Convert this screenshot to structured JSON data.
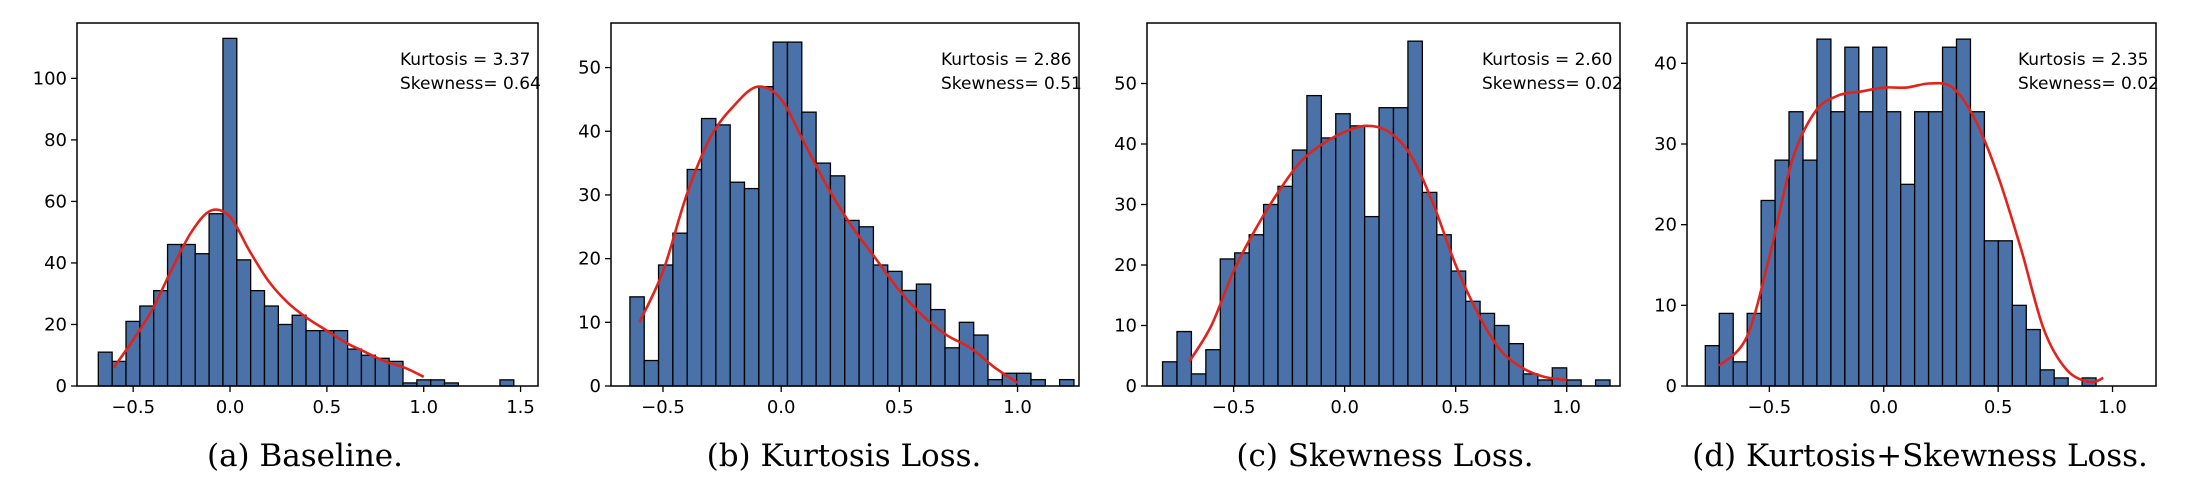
{
  "colors": {
    "bar_fill": "#4a72a8",
    "bar_edge": "#000000",
    "curve": "#e0241c",
    "axis": "#000000"
  },
  "chart_data": [
    {
      "type": "bar",
      "caption": "(a)  Baseline.",
      "stats": {
        "kurtosis_label": "Kurtosis   = 3.37",
        "skewness_label": "Skewness= 0.64"
      },
      "xlim": [
        -0.79,
        1.59
      ],
      "ylim": [
        0,
        118
      ],
      "xticks": [
        -0.5,
        0.0,
        0.5,
        1.0,
        1.5
      ],
      "xtick_labels": [
        "−0.5",
        "0.0",
        "0.5",
        "1.0",
        "1.5"
      ],
      "yticks": [
        0,
        20,
        40,
        60,
        80,
        100
      ],
      "ytick_labels": [
        "0",
        "20",
        "40",
        "60",
        "80",
        "100"
      ],
      "bins": {
        "start": -0.68,
        "width": 0.0715,
        "counts": [
          11,
          8,
          21,
          26,
          31,
          46,
          46,
          43,
          56,
          113,
          41,
          31,
          26,
          20,
          23,
          18,
          18,
          18,
          12,
          10,
          9,
          8,
          1,
          2,
          2,
          1,
          0,
          0,
          0,
          2
        ]
      },
      "density_curve": {
        "x": [
          -0.6,
          -0.5,
          -0.4,
          -0.3,
          -0.2,
          -0.1,
          0.0,
          0.1,
          0.2,
          0.3,
          0.4,
          0.5,
          0.6,
          0.7,
          0.8,
          0.9,
          1.0
        ],
        "y": [
          6,
          15,
          25,
          38,
          50,
          57,
          55,
          44,
          34,
          27,
          22,
          18,
          14,
          11,
          8,
          6,
          3
        ]
      }
    },
    {
      "type": "bar",
      "caption": "(b)  Kurtosis Loss.",
      "stats": {
        "kurtosis_label": "Kurtosis   = 2.86",
        "skewness_label": "Skewness= 0.51"
      },
      "xlim": [
        -0.72,
        1.26
      ],
      "ylim": [
        0,
        57
      ],
      "xticks": [
        -0.5,
        0.0,
        0.5,
        1.0
      ],
      "xtick_labels": [
        "−0.5",
        "0.0",
        "0.5",
        "1.0"
      ],
      "yticks": [
        0,
        10,
        20,
        30,
        40,
        50
      ],
      "ytick_labels": [
        "0",
        "10",
        "20",
        "30",
        "40",
        "50"
      ],
      "bins": {
        "start": -0.64,
        "width": 0.0606,
        "counts": [
          14,
          4,
          19,
          24,
          34,
          42,
          41,
          32,
          31,
          47,
          54,
          54,
          43,
          35,
          33,
          26,
          25,
          19,
          18,
          15,
          16,
          12,
          6,
          10,
          8,
          1,
          2,
          2,
          1,
          0,
          1
        ]
      },
      "density_curve": {
        "x": [
          -0.6,
          -0.5,
          -0.4,
          -0.3,
          -0.2,
          -0.1,
          0.0,
          0.1,
          0.2,
          0.3,
          0.4,
          0.5,
          0.6,
          0.7,
          0.8,
          0.9,
          1.0
        ],
        "y": [
          10,
          18,
          30,
          39,
          44,
          47,
          45,
          38,
          31,
          25,
          20,
          15,
          11,
          8,
          6,
          3,
          0.5
        ]
      }
    },
    {
      "type": "bar",
      "caption": "(c)  Skewness Loss.",
      "stats": {
        "kurtosis_label": "Kurtosis   = 2.60",
        "skewness_label": "Skewness= 0.02"
      },
      "xlim": [
        -0.89,
        1.24
      ],
      "ylim": [
        0,
        60
      ],
      "xticks": [
        -0.5,
        0.0,
        0.5,
        1.0
      ],
      "xtick_labels": [
        "−0.5",
        "0.0",
        "0.5",
        "1.0"
      ],
      "yticks": [
        0,
        10,
        20,
        30,
        40,
        50
      ],
      "ytick_labels": [
        "0",
        "10",
        "20",
        "30",
        "40",
        "50"
      ],
      "bins": {
        "start": -0.82,
        "width": 0.065,
        "counts": [
          4,
          9,
          2,
          6,
          21,
          22,
          25,
          30,
          33,
          39,
          48,
          41,
          45,
          43,
          28,
          46,
          46,
          57,
          32,
          25,
          19,
          14,
          12,
          10,
          7,
          2,
          1,
          3,
          1,
          0,
          1
        ]
      },
      "density_curve": {
        "x": [
          -0.7,
          -0.6,
          -0.5,
          -0.4,
          -0.3,
          -0.2,
          -0.1,
          0.0,
          0.1,
          0.2,
          0.3,
          0.4,
          0.5,
          0.6,
          0.7,
          0.8,
          0.9,
          1.0
        ],
        "y": [
          4,
          10,
          19,
          26,
          32,
          37,
          40,
          42,
          43,
          42,
          38,
          30,
          20,
          12,
          6,
          3,
          1.5,
          1
        ]
      }
    },
    {
      "type": "bar",
      "caption": "(d)  Kurtosis+Skewness Loss.",
      "stats": {
        "kurtosis_label": "Kurtosis   = 2.35",
        "skewness_label": "Skewness= 0.02"
      },
      "xlim": [
        -0.86,
        1.19
      ],
      "ylim": [
        0,
        45
      ],
      "xticks": [
        -0.5,
        0.0,
        0.5,
        1.0
      ],
      "xtick_labels": [
        "−0.5",
        "0.0",
        "0.5",
        "1.0"
      ],
      "yticks": [
        0,
        10,
        20,
        30,
        40
      ],
      "ytick_labels": [
        "0",
        "10",
        "20",
        "30",
        "40"
      ],
      "bins": {
        "start": -0.78,
        "width": 0.061,
        "counts": [
          5,
          9,
          3,
          9,
          23,
          28,
          34,
          28,
          43,
          34,
          42,
          34,
          42,
          34,
          25,
          34,
          34,
          42,
          43,
          34,
          18,
          18,
          10,
          7,
          2,
          1,
          0,
          1
        ]
      },
      "density_curve": {
        "x": [
          -0.72,
          -0.6,
          -0.5,
          -0.4,
          -0.3,
          -0.2,
          -0.1,
          0.0,
          0.1,
          0.2,
          0.3,
          0.4,
          0.5,
          0.6,
          0.7,
          0.8,
          0.9,
          0.96
        ],
        "y": [
          2.5,
          6,
          16,
          28,
          34,
          36,
          36.5,
          37,
          37,
          37.5,
          37,
          33,
          26,
          17,
          7,
          2,
          0.5,
          1
        ]
      }
    }
  ]
}
